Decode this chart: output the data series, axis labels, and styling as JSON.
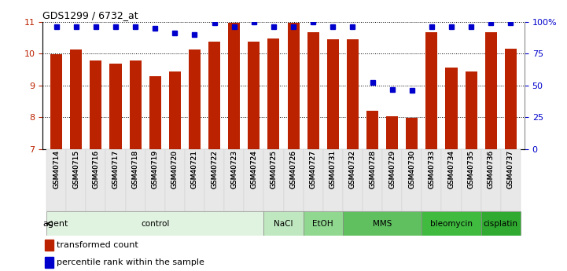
{
  "title": "GDS1299 / 6732_at",
  "samples": [
    "GSM40714",
    "GSM40715",
    "GSM40716",
    "GSM40717",
    "GSM40718",
    "GSM40719",
    "GSM40720",
    "GSM40721",
    "GSM40722",
    "GSM40723",
    "GSM40724",
    "GSM40725",
    "GSM40726",
    "GSM40727",
    "GSM40731",
    "GSM40732",
    "GSM40728",
    "GSM40729",
    "GSM40730",
    "GSM40733",
    "GSM40734",
    "GSM40735",
    "GSM40736",
    "GSM40737"
  ],
  "bar_values": [
    9.98,
    10.12,
    9.77,
    9.68,
    9.77,
    9.3,
    9.43,
    10.13,
    10.37,
    10.96,
    10.37,
    10.47,
    10.96,
    10.67,
    10.45,
    10.44,
    8.21,
    8.02,
    7.98,
    10.68,
    9.57,
    9.43,
    10.68,
    10.14
  ],
  "percentile_values": [
    96,
    96,
    96,
    96,
    96,
    95,
    91,
    90,
    99,
    96,
    100,
    96,
    96,
    100,
    96,
    96,
    52,
    47,
    46,
    96,
    96,
    96,
    99,
    99
  ],
  "agents": [
    {
      "label": "control",
      "start": 0,
      "end": 11,
      "color": "#e0f2e0"
    },
    {
      "label": "NaCl",
      "start": 11,
      "end": 13,
      "color": "#c0e8c0"
    },
    {
      "label": "EtOH",
      "start": 13,
      "end": 15,
      "color": "#90d890"
    },
    {
      "label": "MMS",
      "start": 15,
      "end": 19,
      "color": "#60c060"
    },
    {
      "label": "bleomycin",
      "start": 19,
      "end": 22,
      "color": "#40bb40"
    },
    {
      "label": "cisplatin",
      "start": 22,
      "end": 24,
      "color": "#30aa30"
    }
  ],
  "bar_color": "#bb2200",
  "percentile_color": "#0000cc",
  "ylim_left": [
    7,
    11
  ],
  "ylim_right": [
    0,
    100
  ],
  "yticks_left": [
    7,
    8,
    9,
    10,
    11
  ],
  "yticks_right": [
    0,
    25,
    50,
    75,
    100
  ],
  "ytick_right_labels": [
    "0",
    "25",
    "50",
    "75",
    "100%"
  ],
  "background_color": "#ffffff",
  "grid_color": "#000000",
  "legend_red": "transformed count",
  "legend_blue": "percentile rank within the sample"
}
